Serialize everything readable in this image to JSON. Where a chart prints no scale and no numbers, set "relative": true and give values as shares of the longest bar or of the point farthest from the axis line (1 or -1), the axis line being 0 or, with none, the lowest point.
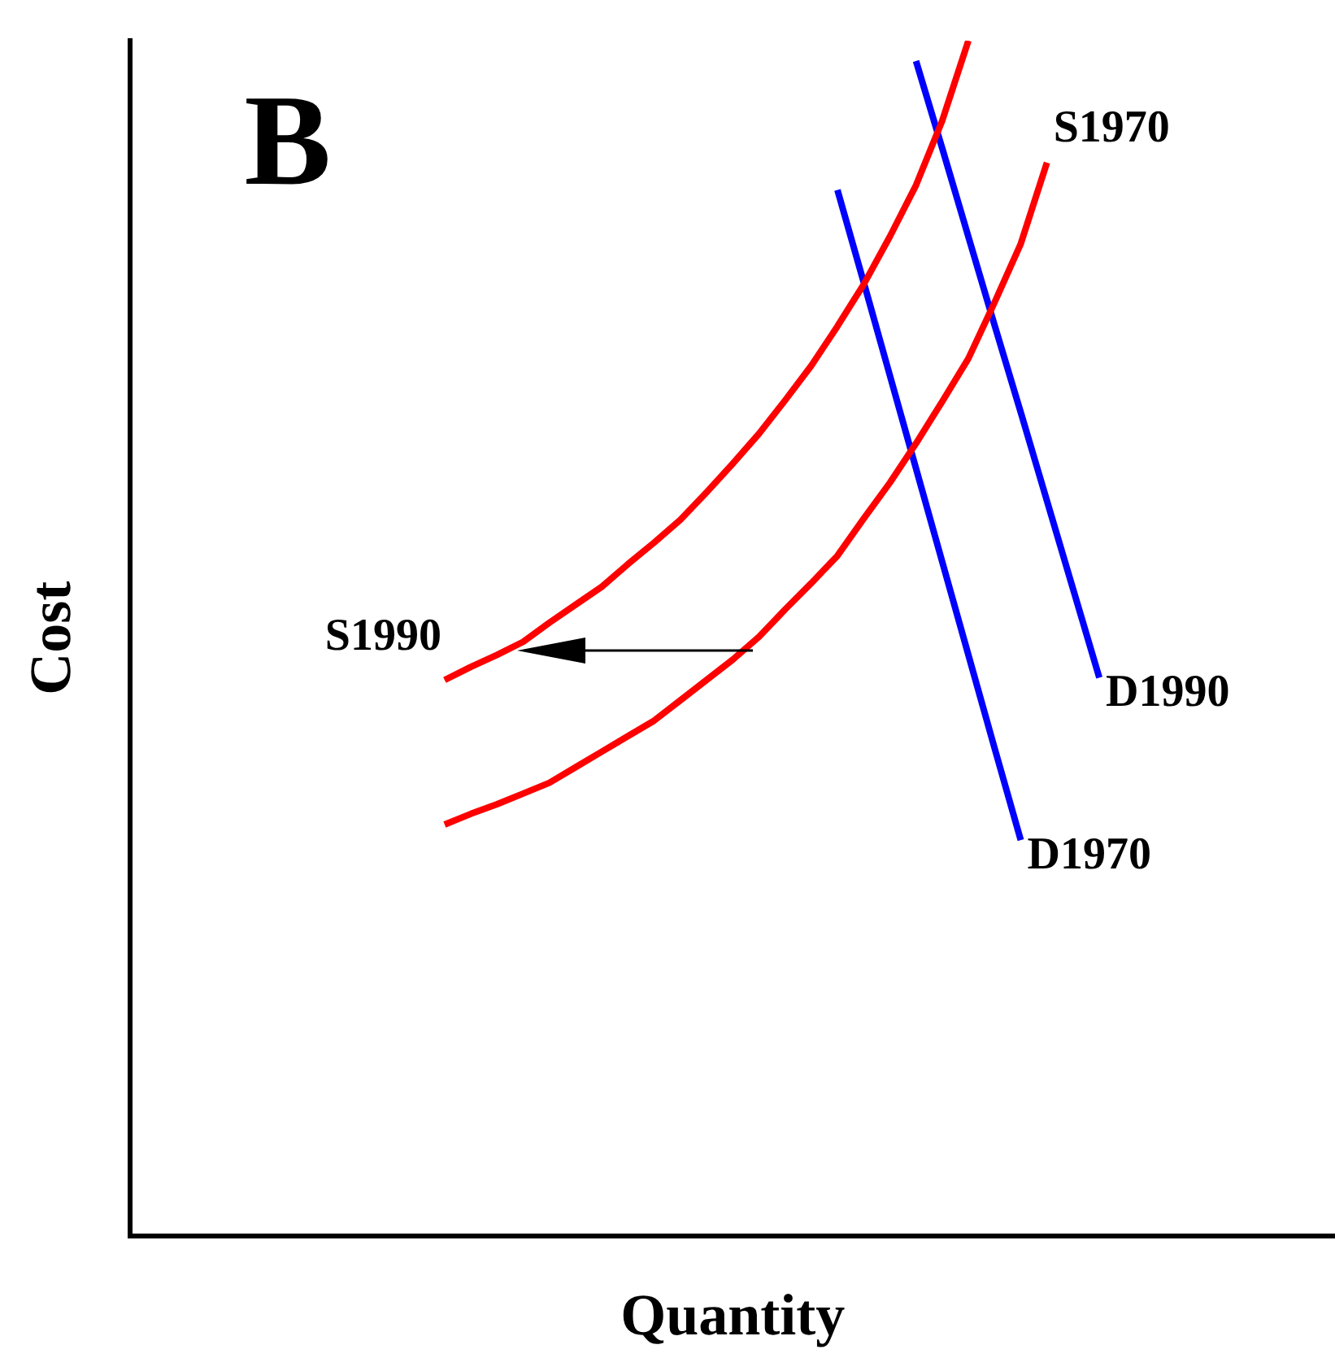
{
  "chart_data": {
    "type": "line",
    "title": "B",
    "xlabel": "Quantity",
    "ylabel": "Cost",
    "relative": true,
    "grid": false,
    "marker": "none",
    "line_style": "solid",
    "categories": [
      null,
      null,
      null,
      null,
      null,
      null,
      null,
      null,
      null,
      null,
      null,
      null,
      null,
      null,
      null,
      null,
      null,
      null,
      null,
      null,
      null,
      null,
      null,
      null,
      null,
      null,
      null,
      null,
      null,
      null,
      null,
      null,
      null,
      null,
      null,
      null,
      null,
      null,
      null,
      null,
      null,
      null,
      null,
      null,
      null,
      null,
      null
    ],
    "series": [
      {
        "name": "S1970",
        "color": "#ff0000",
        "values": [
          null,
          null,
          null,
          null,
          null,
          null,
          null,
          null,
          null,
          null,
          null,
          null,
          0.344,
          0.353,
          0.361,
          0.37,
          0.379,
          0.392,
          0.405,
          0.418,
          0.431,
          0.448,
          0.465,
          0.482,
          0.501,
          0.524,
          0.546,
          0.569,
          0.6,
          0.63,
          0.663,
          0.698,
          0.734,
          0.781,
          0.83,
          0.898,
          null,
          null,
          null,
          null,
          null,
          null,
          null,
          null,
          null,
          null,
          null
        ]
      },
      {
        "name": "S1990",
        "color": "#ff0000",
        "values": [
          null,
          null,
          null,
          null,
          null,
          null,
          null,
          null,
          null,
          null,
          null,
          null,
          0.465,
          0.476,
          0.486,
          0.497,
          0.513,
          0.528,
          0.543,
          0.562,
          0.58,
          0.599,
          0.622,
          0.646,
          0.671,
          0.699,
          0.728,
          0.761,
          0.796,
          0.836,
          0.879,
          0.933,
          1,
          null,
          null,
          null,
          null,
          null,
          null,
          null,
          null,
          null,
          null,
          null,
          null,
          null,
          null
        ]
      },
      {
        "name": "D1970",
        "color": "#0000ff",
        "values": [
          null,
          null,
          null,
          null,
          null,
          null,
          null,
          null,
          null,
          null,
          null,
          null,
          null,
          null,
          null,
          null,
          null,
          null,
          null,
          null,
          null,
          null,
          null,
          null,
          null,
          null,
          null,
          0.875,
          0.798,
          0.72,
          0.642,
          0.564,
          0.486,
          0.408,
          0.331,
          null,
          null,
          null,
          null,
          null,
          null,
          null,
          null,
          null,
          null,
          null,
          null
        ]
      },
      {
        "name": "D1990",
        "color": "#0000ff",
        "values": [
          null,
          null,
          null,
          null,
          null,
          null,
          null,
          null,
          null,
          null,
          null,
          null,
          null,
          null,
          null,
          null,
          null,
          null,
          null,
          null,
          null,
          null,
          null,
          null,
          null,
          null,
          null,
          null,
          null,
          null,
          0.983,
          0.91,
          0.836,
          0.762,
          0.689,
          0.615,
          0.541,
          0.467,
          null,
          null,
          null,
          null,
          null,
          null,
          null,
          null,
          null
        ]
      }
    ]
  }
}
